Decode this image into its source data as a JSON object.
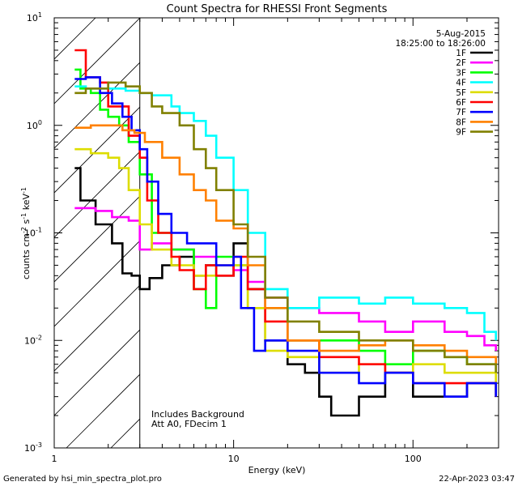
{
  "chart_data": {
    "type": "line",
    "title": "Count Spectra for RHESSI Front Segments",
    "xlabel": "Energy (keV)",
    "ylabel": "counts cm^-2 s^-1 keV^-1",
    "x_scale": "log",
    "y_scale": "log",
    "xlim": [
      1,
      300
    ],
    "ylim": [
      0.001,
      10
    ],
    "x_ticks": [
      {
        "value": 1,
        "label": "1"
      },
      {
        "value": 10,
        "label": "10"
      },
      {
        "value": 100,
        "label": "100"
      }
    ],
    "y_ticks": [
      {
        "value": 10,
        "label": "10^1"
      },
      {
        "value": 1,
        "label": "10^0"
      },
      {
        "value": 0.1,
        "label": "10^-1"
      },
      {
        "value": 0.01,
        "label": "10^-2"
      },
      {
        "value": 0.001,
        "label": "10^-3"
      }
    ],
    "shaded_region": {
      "x_from": 1,
      "x_to": 3,
      "style": "hatched"
    },
    "legend": {
      "position": "top-right",
      "date": "5-Aug-2015",
      "time_range": "18:25:00 to 18:26:00"
    },
    "annotations": [
      "Includes Background",
      "Att A0, FDecim 1"
    ],
    "series": [
      {
        "name": "1F",
        "color": "#000000",
        "points": [
          [
            1.3,
            0.4
          ],
          [
            1.4,
            0.2
          ],
          [
            1.7,
            0.12
          ],
          [
            2.1,
            0.08
          ],
          [
            2.4,
            0.042
          ],
          [
            2.7,
            0.04
          ],
          [
            3.0,
            0.03
          ],
          [
            3.4,
            0.038
          ],
          [
            4.0,
            0.05
          ],
          [
            5.0,
            0.06
          ],
          [
            6.0,
            0.04
          ],
          [
            7.0,
            0.05
          ],
          [
            8.0,
            0.04
          ],
          [
            10,
            0.08
          ],
          [
            12,
            0.03
          ],
          [
            15,
            0.01
          ],
          [
            20,
            0.006
          ],
          [
            25,
            0.005
          ],
          [
            30,
            0.003
          ],
          [
            35,
            0.002
          ],
          [
            40,
            0.002
          ],
          [
            50,
            0.003
          ],
          [
            70,
            0.005
          ],
          [
            100,
            0.003
          ],
          [
            150,
            0.003
          ],
          [
            200,
            0.004
          ],
          [
            290,
            0.003
          ]
        ]
      },
      {
        "name": "2F",
        "color": "#ff00ff",
        "points": [
          [
            1.3,
            0.17
          ],
          [
            1.7,
            0.16
          ],
          [
            2.1,
            0.14
          ],
          [
            2.6,
            0.13
          ],
          [
            3.0,
            0.07
          ],
          [
            3.5,
            0.08
          ],
          [
            4.5,
            0.07
          ],
          [
            6.0,
            0.06
          ],
          [
            8.0,
            0.05
          ],
          [
            10,
            0.045
          ],
          [
            12,
            0.035
          ],
          [
            15,
            0.025
          ],
          [
            20,
            0.02
          ],
          [
            30,
            0.018
          ],
          [
            50,
            0.015
          ],
          [
            70,
            0.012
          ],
          [
            100,
            0.015
          ],
          [
            150,
            0.012
          ],
          [
            200,
            0.011
          ],
          [
            250,
            0.009
          ],
          [
            290,
            0.008
          ]
        ]
      },
      {
        "name": "3F",
        "color": "#00ff00",
        "points": [
          [
            1.3,
            3.3
          ],
          [
            1.4,
            2.2
          ],
          [
            1.6,
            2.0
          ],
          [
            1.8,
            1.4
          ],
          [
            2.0,
            1.2
          ],
          [
            2.3,
            1.0
          ],
          [
            2.6,
            0.7
          ],
          [
            3.0,
            0.35
          ],
          [
            3.5,
            0.1
          ],
          [
            4.5,
            0.07
          ],
          [
            6.0,
            0.03
          ],
          [
            7.0,
            0.02
          ],
          [
            8.0,
            0.06
          ],
          [
            10,
            0.05
          ],
          [
            12,
            0.02
          ],
          [
            15,
            0.02
          ],
          [
            20,
            0.01
          ],
          [
            30,
            0.01
          ],
          [
            50,
            0.008
          ],
          [
            70,
            0.006
          ],
          [
            100,
            0.008
          ],
          [
            150,
            0.007
          ],
          [
            200,
            0.006
          ],
          [
            290,
            0.005
          ]
        ]
      },
      {
        "name": "4F",
        "color": "#00ffff",
        "points": [
          [
            1.3,
            2.3
          ],
          [
            1.5,
            2.2
          ],
          [
            2.0,
            2.2
          ],
          [
            2.5,
            2.1
          ],
          [
            3.0,
            2.0
          ],
          [
            3.5,
            1.9
          ],
          [
            4.0,
            1.9
          ],
          [
            4.5,
            1.5
          ],
          [
            5.0,
            1.3
          ],
          [
            6.0,
            1.1
          ],
          [
            7.0,
            0.8
          ],
          [
            8.0,
            0.5
          ],
          [
            10,
            0.25
          ],
          [
            12,
            0.1
          ],
          [
            15,
            0.03
          ],
          [
            20,
            0.02
          ],
          [
            30,
            0.025
          ],
          [
            50,
            0.022
          ],
          [
            70,
            0.025
          ],
          [
            100,
            0.022
          ],
          [
            150,
            0.02
          ],
          [
            200,
            0.018
          ],
          [
            250,
            0.012
          ],
          [
            290,
            0.01
          ]
        ]
      },
      {
        "name": "5F",
        "color": "#dddd00",
        "points": [
          [
            1.3,
            0.6
          ],
          [
            1.6,
            0.55
          ],
          [
            2.0,
            0.5
          ],
          [
            2.3,
            0.4
          ],
          [
            2.6,
            0.25
          ],
          [
            3.0,
            0.12
          ],
          [
            3.5,
            0.07
          ],
          [
            4.5,
            0.05
          ],
          [
            6.0,
            0.04
          ],
          [
            8.0,
            0.05
          ],
          [
            10,
            0.05
          ],
          [
            12,
            0.02
          ],
          [
            15,
            0.008
          ],
          [
            20,
            0.007
          ],
          [
            30,
            0.005
          ],
          [
            50,
            0.006
          ],
          [
            70,
            0.005
          ],
          [
            100,
            0.006
          ],
          [
            150,
            0.005
          ],
          [
            200,
            0.005
          ],
          [
            290,
            0.004
          ]
        ]
      },
      {
        "name": "6F",
        "color": "#ff0000",
        "points": [
          [
            1.3,
            5.0
          ],
          [
            1.5,
            2.8
          ],
          [
            1.8,
            2.5
          ],
          [
            2.0,
            1.5
          ],
          [
            2.3,
            1.5
          ],
          [
            2.6,
            0.8
          ],
          [
            3.0,
            0.5
          ],
          [
            3.3,
            0.2
          ],
          [
            3.8,
            0.1
          ],
          [
            4.5,
            0.06
          ],
          [
            5.0,
            0.045
          ],
          [
            6.0,
            0.03
          ],
          [
            7.0,
            0.05
          ],
          [
            8.0,
            0.04
          ],
          [
            10,
            0.06
          ],
          [
            12,
            0.03
          ],
          [
            15,
            0.015
          ],
          [
            20,
            0.01
          ],
          [
            30,
            0.007
          ],
          [
            50,
            0.006
          ],
          [
            70,
            0.005
          ],
          [
            100,
            0.004
          ],
          [
            150,
            0.004
          ],
          [
            200,
            0.004
          ],
          [
            290,
            0.003
          ]
        ]
      },
      {
        "name": "7F",
        "color": "#0000ff",
        "points": [
          [
            1.3,
            2.7
          ],
          [
            1.5,
            2.8
          ],
          [
            1.8,
            2.0
          ],
          [
            2.1,
            1.6
          ],
          [
            2.4,
            1.2
          ],
          [
            2.7,
            0.9
          ],
          [
            3.0,
            0.6
          ],
          [
            3.3,
            0.3
          ],
          [
            3.8,
            0.15
          ],
          [
            4.5,
            0.1
          ],
          [
            5.5,
            0.08
          ],
          [
            6.5,
            0.08
          ],
          [
            8.0,
            0.05
          ],
          [
            10,
            0.06
          ],
          [
            11,
            0.02
          ],
          [
            13,
            0.008
          ],
          [
            15,
            0.01
          ],
          [
            20,
            0.008
          ],
          [
            30,
            0.005
          ],
          [
            50,
            0.004
          ],
          [
            70,
            0.005
          ],
          [
            100,
            0.004
          ],
          [
            150,
            0.003
          ],
          [
            200,
            0.004
          ],
          [
            290,
            0.003
          ]
        ]
      },
      {
        "name": "8F",
        "color": "#ff8000",
        "points": [
          [
            1.3,
            0.95
          ],
          [
            1.6,
            1.0
          ],
          [
            2.0,
            1.0
          ],
          [
            2.4,
            0.9
          ],
          [
            2.8,
            0.85
          ],
          [
            3.2,
            0.7
          ],
          [
            4.0,
            0.5
          ],
          [
            5.0,
            0.35
          ],
          [
            6.0,
            0.25
          ],
          [
            7.0,
            0.2
          ],
          [
            8.0,
            0.13
          ],
          [
            10,
            0.11
          ],
          [
            12,
            0.05
          ],
          [
            15,
            0.02
          ],
          [
            20,
            0.01
          ],
          [
            30,
            0.008
          ],
          [
            50,
            0.009
          ],
          [
            70,
            0.01
          ],
          [
            100,
            0.009
          ],
          [
            150,
            0.008
          ],
          [
            200,
            0.007
          ],
          [
            290,
            0.006
          ]
        ]
      },
      {
        "name": "9F",
        "color": "#808000",
        "points": [
          [
            1.3,
            2.0
          ],
          [
            1.5,
            2.2
          ],
          [
            2.0,
            2.5
          ],
          [
            2.5,
            2.3
          ],
          [
            3.0,
            2.0
          ],
          [
            3.5,
            1.5
          ],
          [
            4.0,
            1.3
          ],
          [
            5.0,
            1.0
          ],
          [
            6.0,
            0.6
          ],
          [
            7.0,
            0.4
          ],
          [
            8.0,
            0.25
          ],
          [
            10,
            0.12
          ],
          [
            12,
            0.06
          ],
          [
            15,
            0.025
          ],
          [
            20,
            0.015
          ],
          [
            30,
            0.012
          ],
          [
            50,
            0.01
          ],
          [
            70,
            0.01
          ],
          [
            100,
            0.008
          ],
          [
            150,
            0.007
          ],
          [
            200,
            0.006
          ],
          [
            290,
            0.005
          ]
        ]
      }
    ]
  },
  "footer": {
    "generator": "Generated by hsi_min_spectra_plot.pro",
    "timestamp": "22-Apr-2023 03:47"
  }
}
